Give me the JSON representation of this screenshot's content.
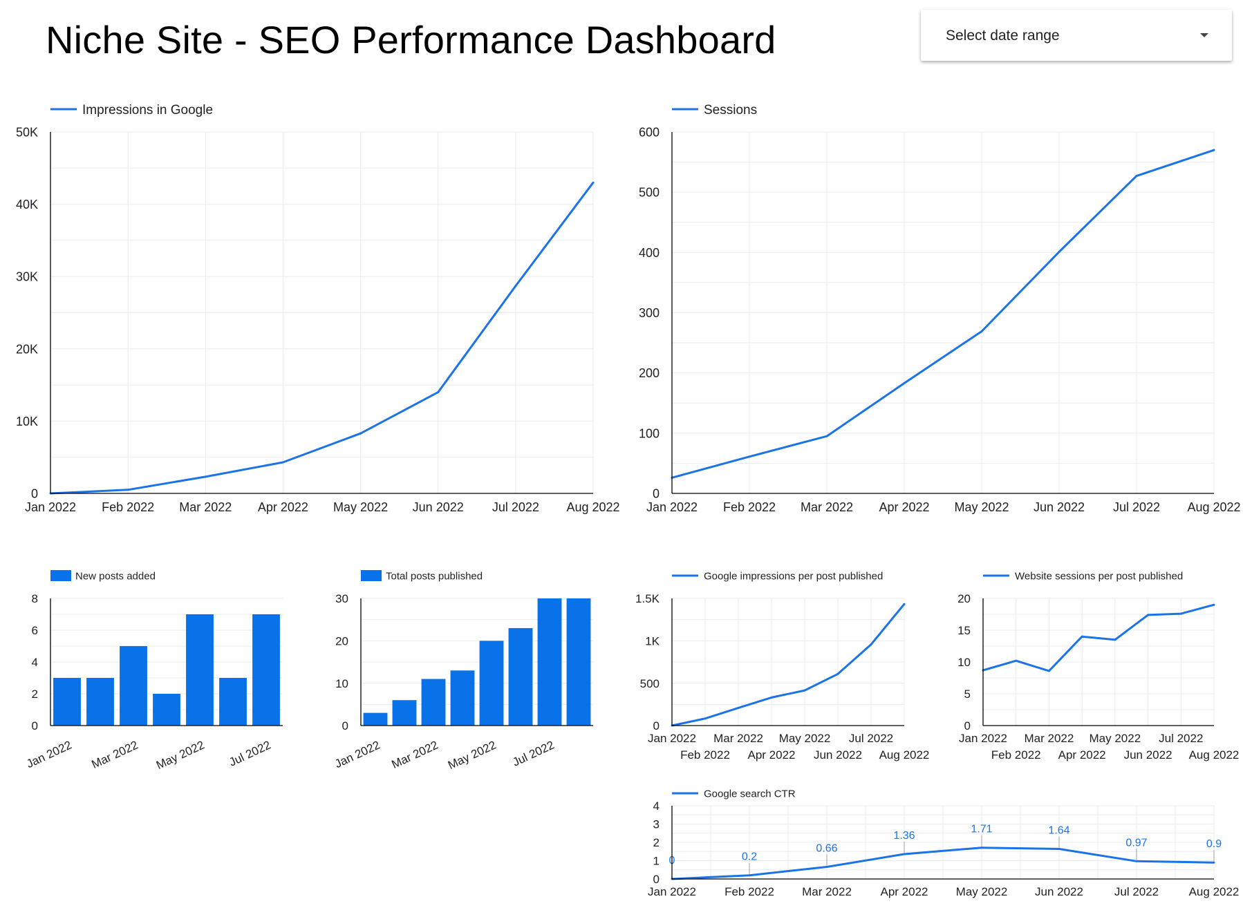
{
  "header": {
    "title": "Niche Site - SEO Performance Dashboard",
    "date_range_label": "Select date range"
  },
  "colors": {
    "series": "#1a73e8",
    "bar": "#0a72e8",
    "grid": "#ebebeb",
    "axis": "#000000"
  },
  "chart_data": [
    {
      "id": "impressions",
      "type": "line",
      "legend": "Impressions in Google",
      "categories": [
        "Jan 2022",
        "Feb 2022",
        "Mar 2022",
        "Apr 2022",
        "May 2022",
        "Jun 2022",
        "Jul 2022",
        "Aug 2022"
      ],
      "values": [
        0,
        500,
        2300,
        4300,
        8300,
        14000,
        28700,
        43000
      ],
      "ylim": [
        0,
        50000
      ],
      "yticks": [
        0,
        10000,
        20000,
        30000,
        40000,
        50000
      ],
      "ytick_labels": [
        "0",
        "10K",
        "20K",
        "30K",
        "40K",
        "50K"
      ],
      "grid": true
    },
    {
      "id": "sessions",
      "type": "line",
      "legend": "Sessions",
      "categories": [
        "Jan 2022",
        "Feb 2022",
        "Mar 2022",
        "Apr 2022",
        "May 2022",
        "Jun 2022",
        "Jul 2022",
        "Aug 2022"
      ],
      "values": [
        26,
        61,
        95,
        183,
        269,
        401,
        527,
        570
      ],
      "ylim": [
        0,
        600
      ],
      "yticks": [
        0,
        100,
        200,
        300,
        400,
        500,
        600
      ],
      "ytick_labels": [
        "0",
        "100",
        "200",
        "300",
        "400",
        "500",
        "600"
      ],
      "grid": true
    },
    {
      "id": "new-posts",
      "type": "bar",
      "legend": "New posts added",
      "categories": [
        "Jan 2022",
        "Feb 2022",
        "Mar 2022",
        "Apr 2022",
        "May 2022",
        "Jun 2022",
        "Jul 2022"
      ],
      "values": [
        3,
        3,
        5,
        2,
        7,
        3,
        7
      ],
      "ylim": [
        0,
        8
      ],
      "yticks": [
        0,
        2,
        4,
        6,
        8
      ],
      "ytick_labels": [
        "0",
        "2",
        "4",
        "6",
        "8"
      ],
      "xtick_labels": [
        "Jan 2022",
        "",
        "Mar 2022",
        "",
        "May 2022",
        "",
        "Jul 2022"
      ],
      "grid": true
    },
    {
      "id": "total-posts",
      "type": "bar",
      "legend": "Total posts published",
      "categories": [
        "Jan 2022",
        "Feb 2022",
        "Mar 2022",
        "Apr 2022",
        "May 2022",
        "Jun 2022",
        "Jul 2022",
        "Aug 2022"
      ],
      "values": [
        3,
        6,
        11,
        13,
        20,
        23,
        30,
        30
      ],
      "ylim": [
        0,
        30
      ],
      "yticks": [
        0,
        10,
        20,
        30
      ],
      "ytick_labels": [
        "0",
        "10",
        "20",
        "30"
      ],
      "xtick_labels": [
        "Jan 2022",
        "",
        "Mar 2022",
        "",
        "May 2022",
        "",
        "Jul 2022",
        ""
      ],
      "grid": true
    },
    {
      "id": "impr-per-post",
      "type": "line",
      "legend": "Google impressions per post published",
      "categories": [
        "Jan 2022",
        "Feb 2022",
        "Mar 2022",
        "Apr 2022",
        "May 2022",
        "Jun 2022",
        "Jul 2022",
        "Aug 2022"
      ],
      "values": [
        0,
        83,
        209,
        331,
        415,
        609,
        957,
        1433
      ],
      "ylim": [
        0,
        1500
      ],
      "yticks": [
        0,
        500,
        1000,
        1500
      ],
      "ytick_labels": [
        "0",
        "500",
        "1K",
        "1.5K"
      ],
      "grid": true
    },
    {
      "id": "sessions-per-post",
      "type": "line",
      "legend": "Website sessions per post published",
      "categories": [
        "Jan 2022",
        "Feb 2022",
        "Mar 2022",
        "Apr 2022",
        "May 2022",
        "Jun 2022",
        "Jul 2022",
        "Aug 2022"
      ],
      "values": [
        8.7,
        10.2,
        8.6,
        14,
        13.5,
        17.4,
        17.6,
        19
      ],
      "ylim": [
        0,
        20
      ],
      "yticks": [
        0,
        5,
        10,
        15,
        20
      ],
      "ytick_labels": [
        "0",
        "5",
        "10",
        "15",
        "20"
      ],
      "grid": true
    },
    {
      "id": "ctr",
      "type": "line",
      "legend": "Google search CTR",
      "categories": [
        "Jan 2022",
        "Feb 2022",
        "Mar 2022",
        "Apr 2022",
        "May 2022",
        "Jun 2022",
        "Jul 2022",
        "Aug 2022"
      ],
      "values": [
        0,
        0.2,
        0.66,
        1.36,
        1.71,
        1.64,
        0.97,
        0.9
      ],
      "data_labels": [
        "0",
        "0.2",
        "0.66",
        "1.36",
        "1.71",
        "1.64",
        "0.97",
        "0.9"
      ],
      "ylim": [
        0,
        4
      ],
      "yticks": [
        0,
        1,
        2,
        3,
        4
      ],
      "ytick_labels": [
        "0",
        "1",
        "2",
        "3",
        "4"
      ],
      "grid": true
    }
  ]
}
